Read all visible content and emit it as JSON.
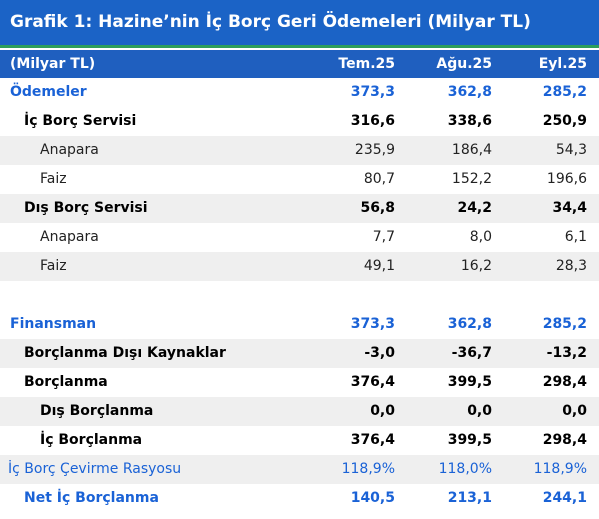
{
  "title": "Grafik 1: Hazine’nin İç Borç Geri Ödemeleri (Milyar TL)",
  "table": {
    "header": [
      "(Milyar TL)",
      "Tem.25",
      "Ağu.25",
      "Eyl.25"
    ],
    "rows": [
      [
        "Ödemeler",
        "373,3",
        "362,8",
        "285,2"
      ],
      [
        "İç Borç Servisi",
        "316,6",
        "338,6",
        "250,9"
      ],
      [
        "Anapara",
        "235,9",
        "186,4",
        "54,3"
      ],
      [
        "Faiz",
        "80,7",
        "152,2",
        "196,6"
      ],
      [
        "Dış Borç Servisi",
        "56,8",
        "24,2",
        "34,4"
      ],
      [
        "Anapara",
        "7,7",
        "8,0",
        "6,1"
      ],
      [
        "Faiz",
        "49,1",
        "16,2",
        "28,3"
      ],
      [
        "Finansman",
        "373,3",
        "362,8",
        "285,2"
      ],
      [
        "Borçlanma Dışı Kaynaklar",
        "-3,0",
        "-36,7",
        "-13,2"
      ],
      [
        "Borçlanma",
        "376,4",
        "399,5",
        "298,4"
      ],
      [
        "Dış Borçlanma",
        "0,0",
        "0,0",
        "0,0"
      ],
      [
        "İç Borçlanma",
        "376,4",
        "399,5",
        "298,4"
      ],
      [
        "İç Borç Çevirme Rasyosu",
        "118,9%",
        "118,0%",
        "118,9%"
      ],
      [
        "Net İç Borçlanma",
        "140,5",
        "213,1",
        "244,1"
      ]
    ]
  }
}
